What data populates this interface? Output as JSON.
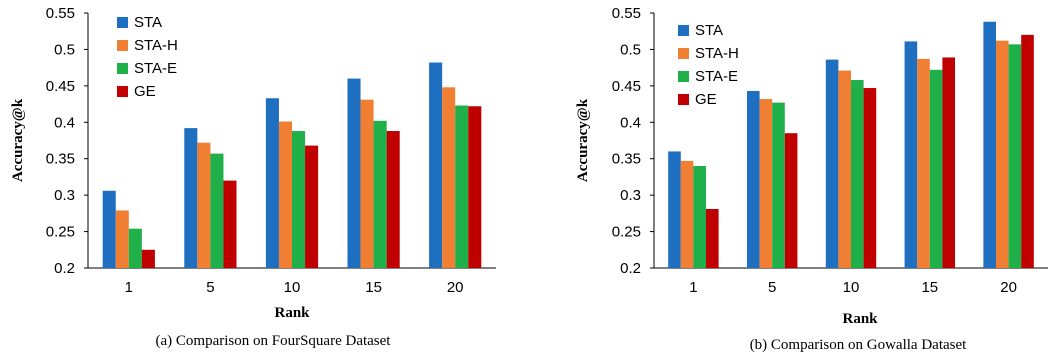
{
  "chart_data": [
    {
      "type": "bar",
      "categories": [
        "1",
        "5",
        "10",
        "15",
        "20"
      ],
      "series": [
        {
          "name": "STA",
          "values": [
            0.306,
            0.392,
            0.433,
            0.46,
            0.482
          ]
        },
        {
          "name": "STA-H",
          "values": [
            0.279,
            0.372,
            0.401,
            0.431,
            0.448
          ]
        },
        {
          "name": "STA-E",
          "values": [
            0.254,
            0.357,
            0.388,
            0.402,
            0.423
          ]
        },
        {
          "name": "GE",
          "values": [
            0.225,
            0.32,
            0.368,
            0.388,
            0.422
          ]
        }
      ],
      "xlabel": "Rank",
      "ylabel": "Accuracy@k",
      "ylim": [
        0.2,
        0.55
      ],
      "yticks": [
        "0.2",
        "0.25",
        "0.3",
        "0.35",
        "0.4",
        "0.45",
        "0.5",
        "0.55"
      ],
      "caption": "(a)  Comparison on FourSquare Dataset",
      "legend_position": "top-left",
      "grid": false
    },
    {
      "type": "bar",
      "categories": [
        "1",
        "5",
        "10",
        "15",
        "20"
      ],
      "series": [
        {
          "name": "STA",
          "values": [
            0.36,
            0.443,
            0.486,
            0.511,
            0.538
          ]
        },
        {
          "name": "STA-H",
          "values": [
            0.347,
            0.432,
            0.471,
            0.487,
            0.512
          ]
        },
        {
          "name": "STA-E",
          "values": [
            0.34,
            0.427,
            0.458,
            0.472,
            0.507
          ]
        },
        {
          "name": "GE",
          "values": [
            0.281,
            0.385,
            0.447,
            0.489,
            0.52
          ]
        }
      ],
      "xlabel": "Rank",
      "ylabel": "Accuracy@k",
      "ylim": [
        0.2,
        0.55
      ],
      "yticks": [
        "0.2",
        "0.25",
        "0.3",
        "0.35",
        "0.4",
        "0.45",
        "0.5",
        "0.55"
      ],
      "caption": "(b)  Comparison on Gowalla Dataset",
      "legend_position": "top-left",
      "grid": false
    }
  ],
  "colors": {
    "STA": "#1f6fc0",
    "STA-H": "#f07f33",
    "STA-E": "#1fb04a",
    "GE": "#c00000",
    "axis": "#000000"
  }
}
